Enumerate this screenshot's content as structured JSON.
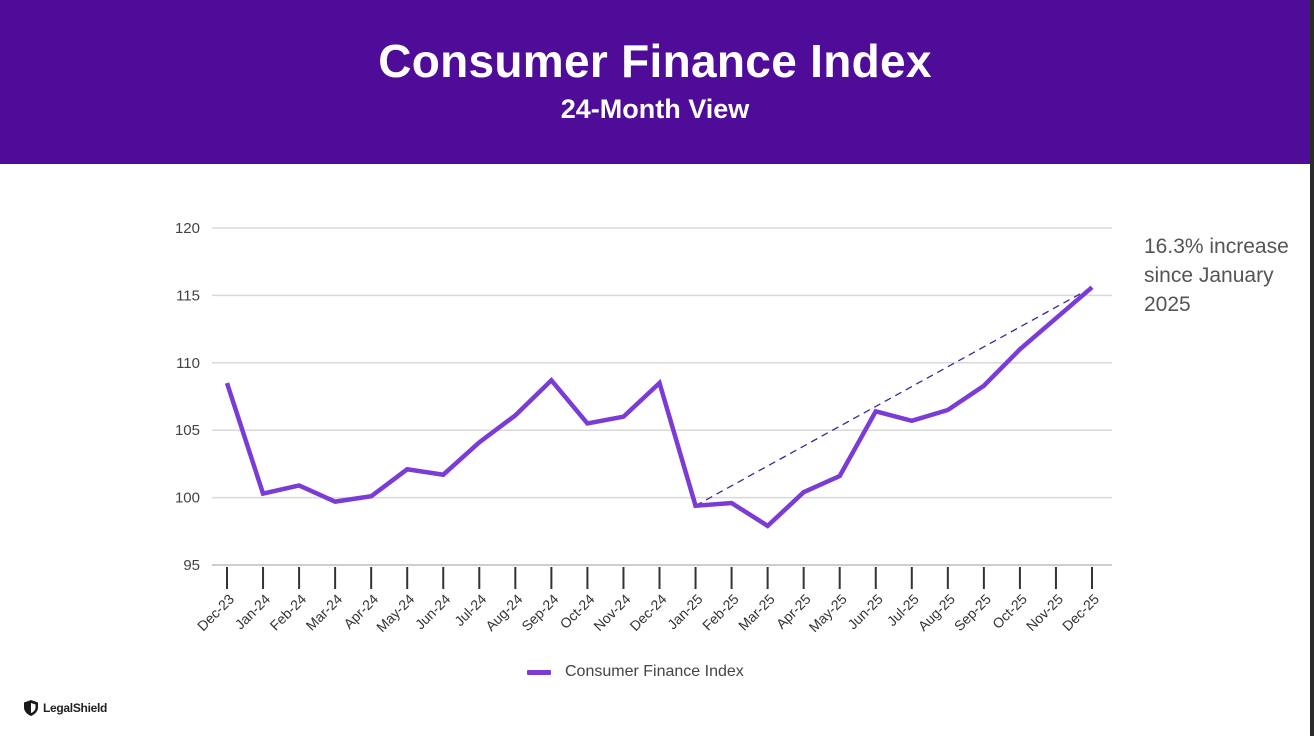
{
  "header": {
    "title": "Consumer Finance Index",
    "subtitle": "24-Month View"
  },
  "annotation": {
    "text": "16.3% increase since January 2025"
  },
  "legend": {
    "label": "Consumer Finance Index"
  },
  "logo": {
    "text": "LegalShield"
  },
  "colors": {
    "header_bg": "#4f0c99",
    "series_line": "#7b3cd6",
    "trend_line": "#3d2a8f",
    "grid": "#d9d9d9"
  },
  "chart_data": {
    "type": "line",
    "title": "Consumer Finance Index",
    "subtitle": "24-Month View",
    "categories": [
      "Dec-23",
      "Jan-24",
      "Feb-24",
      "Mar-24",
      "Apr-24",
      "May-24",
      "Jun-24",
      "Jul-24",
      "Aug-24",
      "Sep-24",
      "Oct-24",
      "Nov-24",
      "Dec-24",
      "Jan-25",
      "Feb-25",
      "Mar-25",
      "Apr-25",
      "May-25",
      "Jun-25",
      "Jul-25",
      "Aug-25",
      "Sep-25",
      "Oct-25",
      "Nov-25",
      "Dec-25"
    ],
    "series": [
      {
        "name": "Consumer Finance Index",
        "values": [
          108.5,
          100.3,
          100.9,
          99.7,
          100.1,
          102.1,
          101.7,
          104.1,
          106.1,
          108.7,
          105.5,
          106.0,
          108.5,
          99.4,
          99.6,
          97.9,
          100.4,
          101.6,
          106.4,
          105.7,
          106.5,
          108.3,
          111.0,
          113.3,
          115.6
        ]
      }
    ],
    "trendline": {
      "from": "Jan-25",
      "to": "Dec-25",
      "style": "dashed"
    },
    "yticks": [
      95,
      100,
      105,
      110,
      115,
      120
    ],
    "ylim": [
      95,
      120
    ],
    "grid": true,
    "legend_position": "bottom"
  }
}
